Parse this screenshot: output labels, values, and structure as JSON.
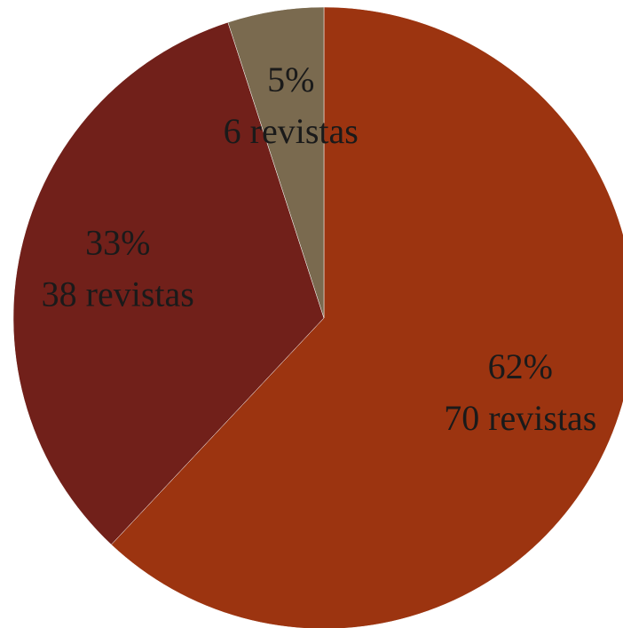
{
  "chart_data": {
    "type": "pie",
    "values": [
      62,
      33,
      5
    ],
    "value_labels": [
      "62%",
      "33%",
      "5%"
    ],
    "count_labels": [
      "70 revistas",
      "38 revistas",
      "6 revistas"
    ],
    "colors": [
      "#9c3410",
      "#71201a",
      "#7a6a4f"
    ]
  }
}
